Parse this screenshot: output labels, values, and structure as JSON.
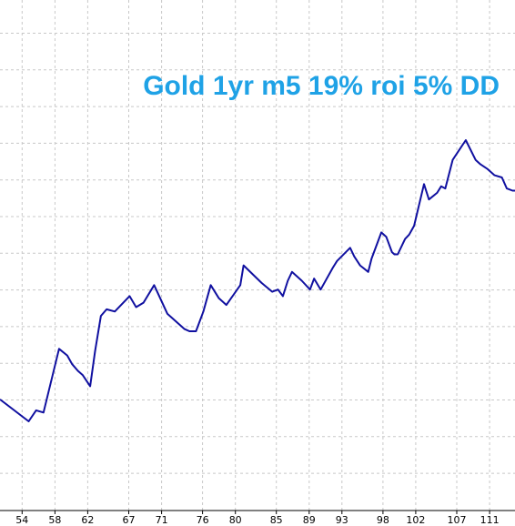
{
  "chart_data": {
    "type": "line",
    "title": "Gold 1yr m5 19% roi 5% DD",
    "x_tick_labels": [
      "54",
      "58",
      "62",
      "67",
      "71",
      "76",
      "80",
      "85",
      "89",
      "93",
      "98",
      "102",
      "107",
      "111"
    ],
    "x_tick_values": [
      54,
      58,
      62,
      67,
      71,
      76,
      80,
      85,
      89,
      93,
      98,
      102,
      107,
      111
    ],
    "xlim": [
      51.3,
      114.1
    ],
    "grid": true,
    "legend": "none",
    "series": [
      {
        "color": "#1010a0",
        "x": [
          51.3,
          54.8,
          55.7,
          56.6,
          58.5,
          59.5,
          60.1,
          60.8,
          61.4,
          62.3,
          62.9,
          63.6,
          64.3,
          65.3,
          67.1,
          67.9,
          68.8,
          70.1,
          71.7,
          73.8,
          74.4,
          75.2,
          76.1,
          77.0,
          78.0,
          78.9,
          80.6,
          81.0,
          83.2,
          84.5,
          85.2,
          85.8,
          86.4,
          86.9,
          88.1,
          89.1,
          89.6,
          90.4,
          91.9,
          92.4,
          94.0,
          94.5,
          95.2,
          96.2,
          96.6,
          97.8,
          98.4,
          99.1,
          99.4,
          99.8,
          100.7,
          101.2,
          101.8,
          103.0,
          103.6,
          104.6,
          105.1,
          105.6,
          106.5,
          108.1,
          109.3,
          109.9,
          110.7,
          111.6,
          112.5,
          113.1,
          113.8,
          114.1
        ],
        "y": [
          -6.0,
          -16.0,
          -11.0,
          -12.0,
          17.0,
          14.0,
          10.0,
          7.0,
          5.0,
          0.0,
          16.0,
          32.0,
          35.0,
          34.0,
          41.0,
          36.0,
          38.0,
          46.0,
          33.0,
          26.0,
          25.0,
          25.0,
          34.0,
          46.0,
          40.0,
          37.0,
          46.0,
          55.0,
          47.0,
          43.0,
          44.0,
          41.0,
          48.0,
          52.0,
          48.0,
          44.0,
          49.0,
          44.0,
          54.0,
          57.0,
          63.0,
          59.0,
          55.0,
          52.0,
          58.0,
          70.0,
          68.0,
          61.0,
          60.0,
          60.0,
          67.0,
          69.0,
          73.0,
          92.0,
          85.0,
          88.0,
          91.0,
          90.0,
          103.0,
          112.0,
          103.0,
          101.0,
          99.0,
          96.0,
          95.0,
          90.0,
          89.0,
          89.0
        ]
      }
    ]
  },
  "colors": {
    "title": "#1fa2e6",
    "line": "#1010a0",
    "grid": "#c8c8c8",
    "axis": "#000000"
  }
}
